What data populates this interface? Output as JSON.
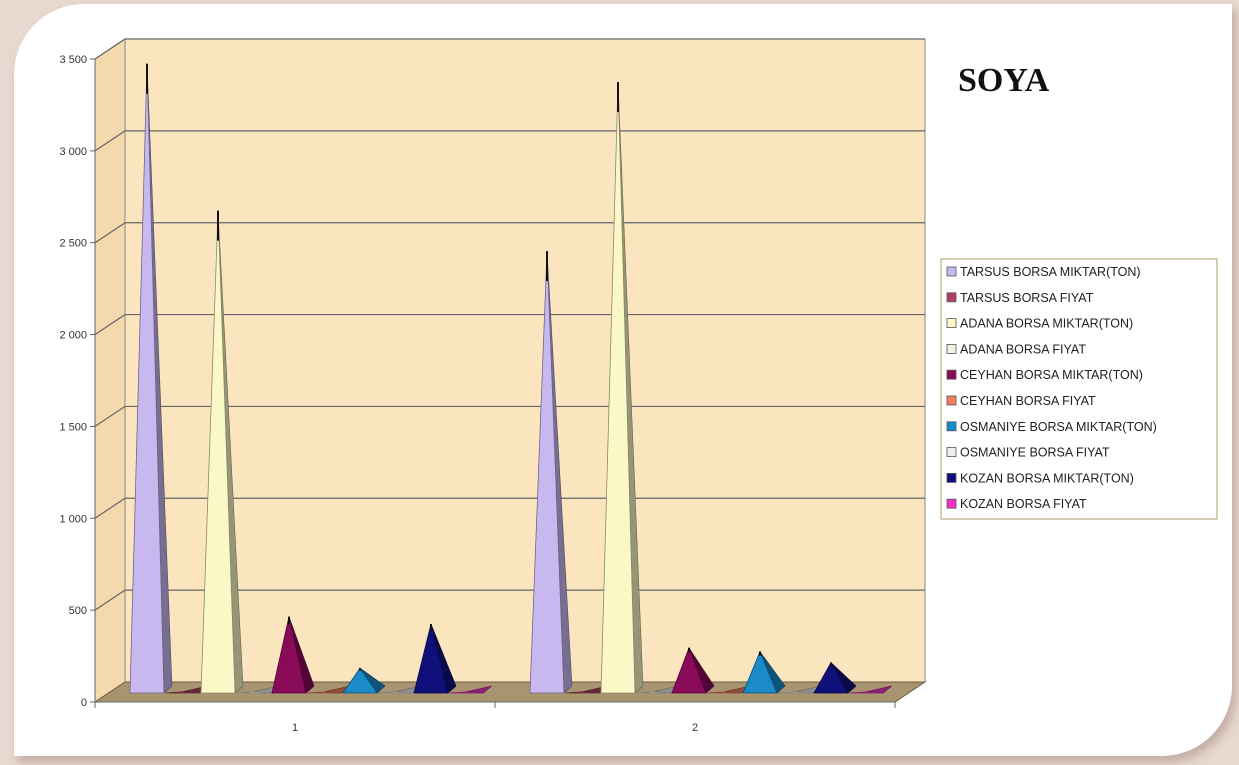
{
  "chart_data": {
    "type": "bar",
    "title": "SOYA",
    "categories": [
      "1",
      "2"
    ],
    "y_ticks": [
      "0",
      "500",
      "1 000",
      "1 500",
      "2 000",
      "2 500",
      "3 000",
      "3 500"
    ],
    "ylim": [
      0,
      3500
    ],
    "grid": true,
    "legend_position": "right",
    "series": [
      {
        "name": "TARSUS BORSA MIKTAR(TON)",
        "values": [
          3420,
          2400
        ],
        "color": "#c8b8f0"
      },
      {
        "name": "TARSUS BORSA FIYAT",
        "values": [
          0.8,
          0.8
        ],
        "color": "#b04060"
      },
      {
        "name": "ADANA BORSA MIKTAR(TON)",
        "values": [
          2620,
          3320
        ],
        "color": "#fbf8c8"
      },
      {
        "name": "ADANA BORSA FIYAT",
        "values": [
          0.8,
          0.8
        ],
        "color": "#eef3e8"
      },
      {
        "name": "CEYHAN BORSA MIKTAR(TON)",
        "values": [
          410,
          240
        ],
        "color": "#8a0a5a"
      },
      {
        "name": "CEYHAN BORSA FIYAT",
        "values": [
          0.8,
          0.8
        ],
        "color": "#f08060"
      },
      {
        "name": "OSMANIYE BORSA MIKTAR(TON)",
        "values": [
          130,
          220
        ],
        "color": "#1a8ac8"
      },
      {
        "name": "OSMANIYE BORSA FIYAT",
        "values": [
          0.8,
          0.8
        ],
        "color": "#eeeeee"
      },
      {
        "name": "KOZAN BORSA MIKTAR(TON)",
        "values": [
          370,
          160
        ],
        "color": "#10107a"
      },
      {
        "name": "KOZAN BORSA FIYAT",
        "values": [
          0.8,
          0.8
        ],
        "color": "#f030c8"
      }
    ]
  }
}
